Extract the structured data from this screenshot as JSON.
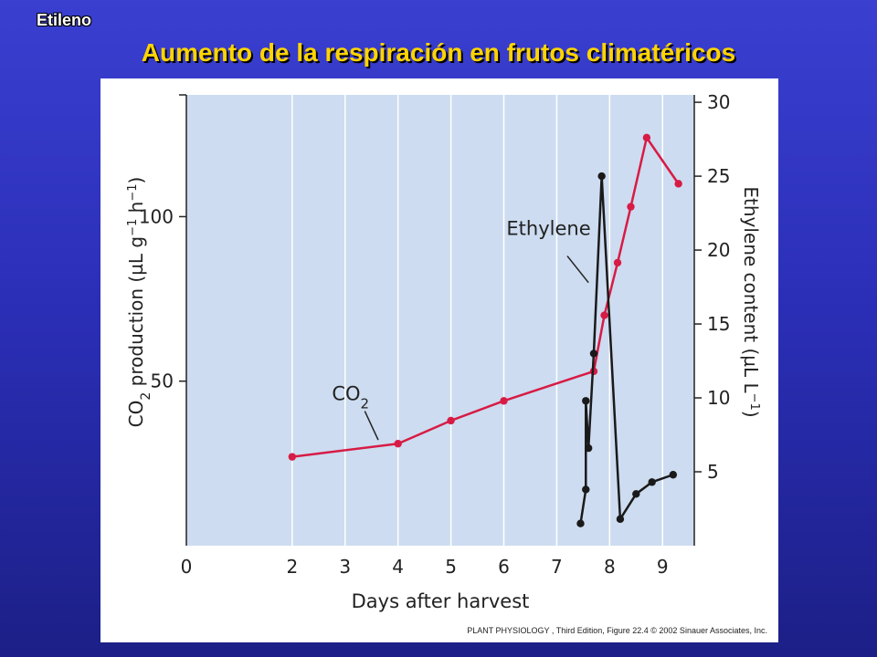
{
  "slide": {
    "kicker": "Etileno",
    "title": "Aumento de la respiración en frutos climatéricos"
  },
  "credit": "PLANT PHYSIOLOGY , Third Edition, Figure 22.4  © 2002 Sinauer Associates, Inc.",
  "colors": {
    "co2": "#d81b45",
    "ethylene": "#1a1a1a",
    "plot_bg": "#cddcf0"
  },
  "chart_data": {
    "type": "line",
    "xlabel": "Days after harvest",
    "ylabel_left": {
      "main": "CO",
      "sub": "2",
      "rest": " production (µL g",
      "sup1": "−1",
      "mid": " h",
      "sup2": "−1",
      "end": ")"
    },
    "ylabel_right": {
      "main": "Ethylene content (µL L",
      "sup": "−1",
      "end": ")"
    },
    "x_ticks": [
      "0",
      "2",
      "3",
      "4",
      "5",
      "6",
      "7",
      "8",
      "9"
    ],
    "x_tick_values": [
      0,
      2,
      3,
      4,
      5,
      6,
      7,
      8,
      9
    ],
    "xlim": [
      0,
      9.6
    ],
    "y_left_ticks": [
      "50",
      "100"
    ],
    "y_left_tick_values": [
      50,
      100
    ],
    "ylim_left": [
      0,
      137
    ],
    "y_right_ticks": [
      "5",
      "10",
      "15",
      "20",
      "25",
      "30"
    ],
    "y_right_tick_values": [
      5,
      10,
      15,
      20,
      25,
      30
    ],
    "ylim_right": [
      0,
      30.5
    ],
    "grid": "vertical",
    "series": [
      {
        "name": "CO2",
        "label": {
          "main": "CO",
          "sub": "2"
        },
        "axis": "left",
        "x": [
          2,
          4,
          5,
          6,
          7.7,
          7.9,
          8.15,
          8.4,
          8.7,
          9.3
        ],
        "y": [
          27,
          31,
          38,
          44,
          53,
          70,
          86,
          103,
          124,
          110
        ]
      },
      {
        "name": "Ethylene",
        "label": {
          "main": "Ethylene"
        },
        "axis": "right",
        "x": [
          7.45,
          7.55,
          7.55,
          7.6,
          7.7,
          7.85,
          8.2,
          8.5,
          8.8,
          9.2
        ],
        "y": [
          1.5,
          3.8,
          9.8,
          6.6,
          13,
          25,
          1.8,
          3.5,
          4.3,
          4.8
        ]
      }
    ]
  }
}
